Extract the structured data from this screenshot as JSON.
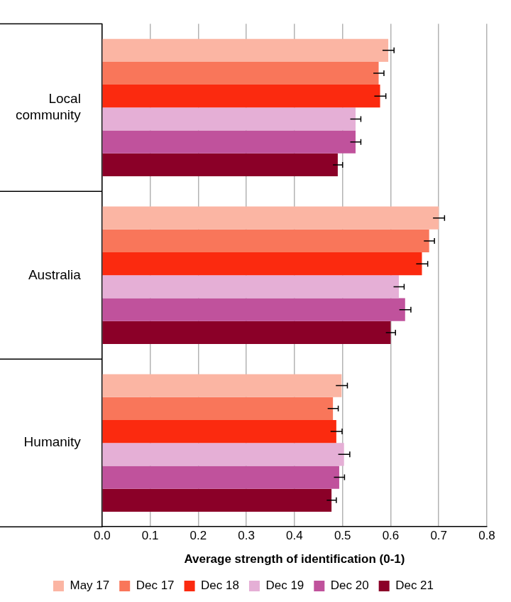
{
  "chart_data": {
    "type": "bar",
    "orientation": "horizontal",
    "categories": [
      "Local community",
      "Australia",
      "Humanity"
    ],
    "series": [
      {
        "name": "May 17",
        "color": "#fbb5a3",
        "values": [
          0.595,
          0.7,
          0.498
        ],
        "errors": [
          0.012,
          0.012,
          0.012
        ]
      },
      {
        "name": "Dec 17",
        "color": "#f9765a",
        "values": [
          0.575,
          0.68,
          0.48
        ],
        "errors": [
          0.011,
          0.011,
          0.011
        ]
      },
      {
        "name": "Dec 18",
        "color": "#fb2a0f",
        "values": [
          0.578,
          0.665,
          0.487
        ],
        "errors": [
          0.012,
          0.012,
          0.012
        ]
      },
      {
        "name": "Dec 19",
        "color": "#e5afd6",
        "values": [
          0.527,
          0.617,
          0.503
        ],
        "errors": [
          0.011,
          0.011,
          0.012
        ]
      },
      {
        "name": "Dec 20",
        "color": "#c0529c",
        "values": [
          0.527,
          0.63,
          0.493
        ],
        "errors": [
          0.011,
          0.012,
          0.011
        ]
      },
      {
        "name": "Dec 21",
        "color": "#8b0028",
        "values": [
          0.49,
          0.6,
          0.477
        ],
        "errors": [
          0.01,
          0.01,
          0.01
        ]
      }
    ],
    "x_label": "Average strength of identification (0-1)",
    "xlim": [
      0,
      0.8
    ],
    "xticks": [
      {
        "value": 0,
        "label": "0.0"
      },
      0.1,
      0.2,
      0.3,
      0.4,
      0.5,
      0.6,
      0.7,
      0.8
    ],
    "grid": true,
    "legend": "bottom"
  }
}
